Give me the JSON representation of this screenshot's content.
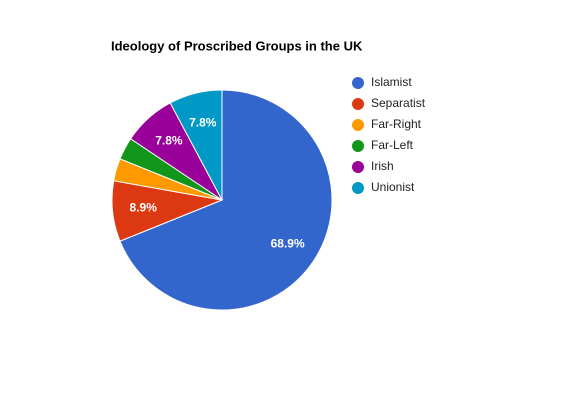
{
  "chart_data": {
    "type": "pie",
    "title": "Ideology of Proscribed Groups in the UK",
    "categories": [
      "Islamist",
      "Separatist",
      "Far-Right",
      "Far-Left",
      "Irish",
      "Unionist"
    ],
    "values": [
      68.9,
      8.9,
      3.3,
      3.3,
      7.8,
      7.8
    ],
    "value_labels": [
      "68.9%",
      "8.9%",
      null,
      null,
      "7.8%",
      "7.8%"
    ],
    "colors": [
      "#3366cc",
      "#dc3912",
      "#ff9900",
      "#109618",
      "#990099",
      "#0099c6"
    ],
    "legend": "right"
  }
}
